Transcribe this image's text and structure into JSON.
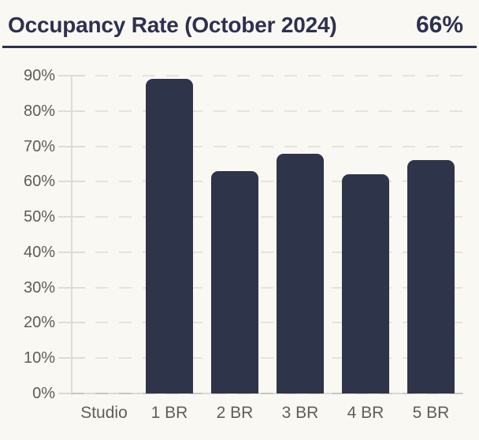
{
  "header": {
    "title": "Occupancy Rate (October 2024)",
    "value": "66%"
  },
  "colors": {
    "background": "#faf8f3",
    "bar": "#2e344a",
    "title_text": "#2d3150",
    "header_rule": "#2c3150",
    "axis_label_text": "#5d5d5b",
    "gridline": "#e5e3de",
    "axis_line": "#dedcd7",
    "baseline": "#c8c6c1"
  },
  "chart_data": {
    "type": "bar",
    "title": "Occupancy Rate (October 2024)",
    "headline_value": "66%",
    "categories": [
      "Studio",
      "1 BR",
      "2 BR",
      "3 BR",
      "4 BR",
      "5 BR"
    ],
    "values": [
      0,
      89,
      63,
      68,
      62,
      66
    ],
    "xlabel": "",
    "ylabel": "",
    "ylim": [
      0,
      90
    ],
    "ytick_step": 10,
    "ytick_labels": [
      "0%",
      "10%",
      "20%",
      "30%",
      "40%",
      "50%",
      "60%",
      "70%",
      "80%",
      "90%"
    ],
    "grid": true,
    "grid_style": "dashed",
    "legend": false,
    "bar_corner_radius": "rounded-top"
  }
}
